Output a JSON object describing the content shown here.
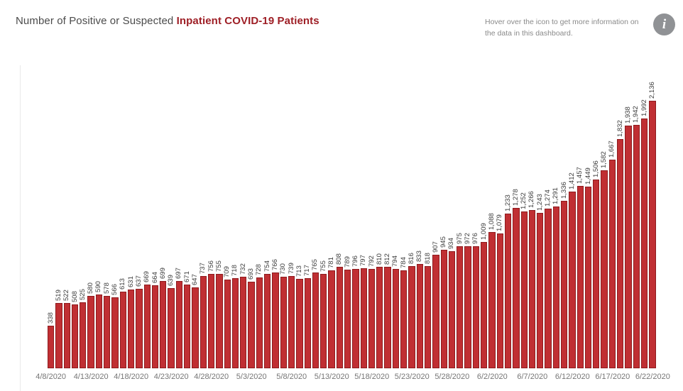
{
  "header": {
    "title_prefix": "Number of Positive or Suspected ",
    "title_emphasis": "Inpatient COVID-19 Patients",
    "note_line1": "Hover over the icon to get more information on",
    "note_line2": "the data in this dashboard.",
    "info_icon_glyph": "i"
  },
  "colors": {
    "title_text": "#4b4b4b",
    "title_emphasis": "#9e1f26",
    "note_text": "#8a8a8a",
    "info_icon_bg": "#909295",
    "bar_fill": "#c02f33",
    "bar_border": "#8e1b1e",
    "bar_value_label": "#3c3c3c",
    "axis_label": "#767676"
  },
  "chart_data": {
    "type": "bar",
    "title": "Number of Positive or Suspected Inpatient COVID-19 Patients",
    "xlabel": "",
    "ylabel": "",
    "grid": false,
    "legend": false,
    "value_labels": "rotated 90° above each bar, comma thousands separator",
    "ylim": [
      0,
      2136
    ],
    "scale_max": 2136,
    "x_tick_every": 5,
    "x_tick_labels": [
      "4/8/2020",
      "4/13/2020",
      "4/18/2020",
      "4/23/2020",
      "4/28/2020",
      "5/3/2020",
      "5/8/2020",
      "5/13/2020",
      "5/18/2020",
      "5/23/2020",
      "5/28/2020",
      "6/2/2020",
      "6/7/2020",
      "6/12/2020",
      "6/17/2020",
      "6/22/2020"
    ],
    "categories": [
      "4/8/2020",
      "4/9/2020",
      "4/10/2020",
      "4/11/2020",
      "4/12/2020",
      "4/13/2020",
      "4/14/2020",
      "4/15/2020",
      "4/16/2020",
      "4/17/2020",
      "4/18/2020",
      "4/19/2020",
      "4/20/2020",
      "4/21/2020",
      "4/22/2020",
      "4/23/2020",
      "4/24/2020",
      "4/25/2020",
      "4/26/2020",
      "4/27/2020",
      "4/28/2020",
      "4/29/2020",
      "4/30/2020",
      "5/1/2020",
      "5/2/2020",
      "5/3/2020",
      "5/4/2020",
      "5/5/2020",
      "5/6/2020",
      "5/7/2020",
      "5/8/2020",
      "5/9/2020",
      "5/10/2020",
      "5/11/2020",
      "5/12/2020",
      "5/13/2020",
      "5/14/2020",
      "5/15/2020",
      "5/16/2020",
      "5/17/2020",
      "5/18/2020",
      "5/19/2020",
      "5/20/2020",
      "5/21/2020",
      "5/22/2020",
      "5/23/2020",
      "5/24/2020",
      "5/25/2020",
      "5/26/2020",
      "5/27/2020",
      "5/28/2020",
      "5/29/2020",
      "5/30/2020",
      "5/31/2020",
      "6/1/2020",
      "6/2/2020",
      "6/3/2020",
      "6/4/2020",
      "6/5/2020",
      "6/6/2020",
      "6/7/2020",
      "6/8/2020",
      "6/9/2020",
      "6/10/2020",
      "6/11/2020",
      "6/12/2020",
      "6/13/2020",
      "6/14/2020",
      "6/15/2020",
      "6/16/2020",
      "6/17/2020",
      "6/18/2020",
      "6/19/2020",
      "6/20/2020",
      "6/21/2020",
      "6/22/2020"
    ],
    "values": [
      338,
      519,
      522,
      508,
      525,
      580,
      590,
      578,
      566,
      613,
      631,
      637,
      669,
      664,
      699,
      639,
      697,
      671,
      647,
      737,
      756,
      755,
      709,
      718,
      732,
      693,
      728,
      754,
      766,
      730,
      739,
      713,
      717,
      765,
      755,
      781,
      808,
      789,
      796,
      797,
      792,
      810,
      812,
      794,
      784,
      816,
      833,
      818,
      907,
      945,
      934,
      975,
      972,
      976,
      1009,
      1088,
      1079,
      1233,
      1278,
      1252,
      1266,
      1243,
      1274,
      1291,
      1336,
      1412,
      1457,
      1449,
      1506,
      1582,
      1667,
      1832,
      1938,
      1942,
      1992,
      2136
    ]
  }
}
